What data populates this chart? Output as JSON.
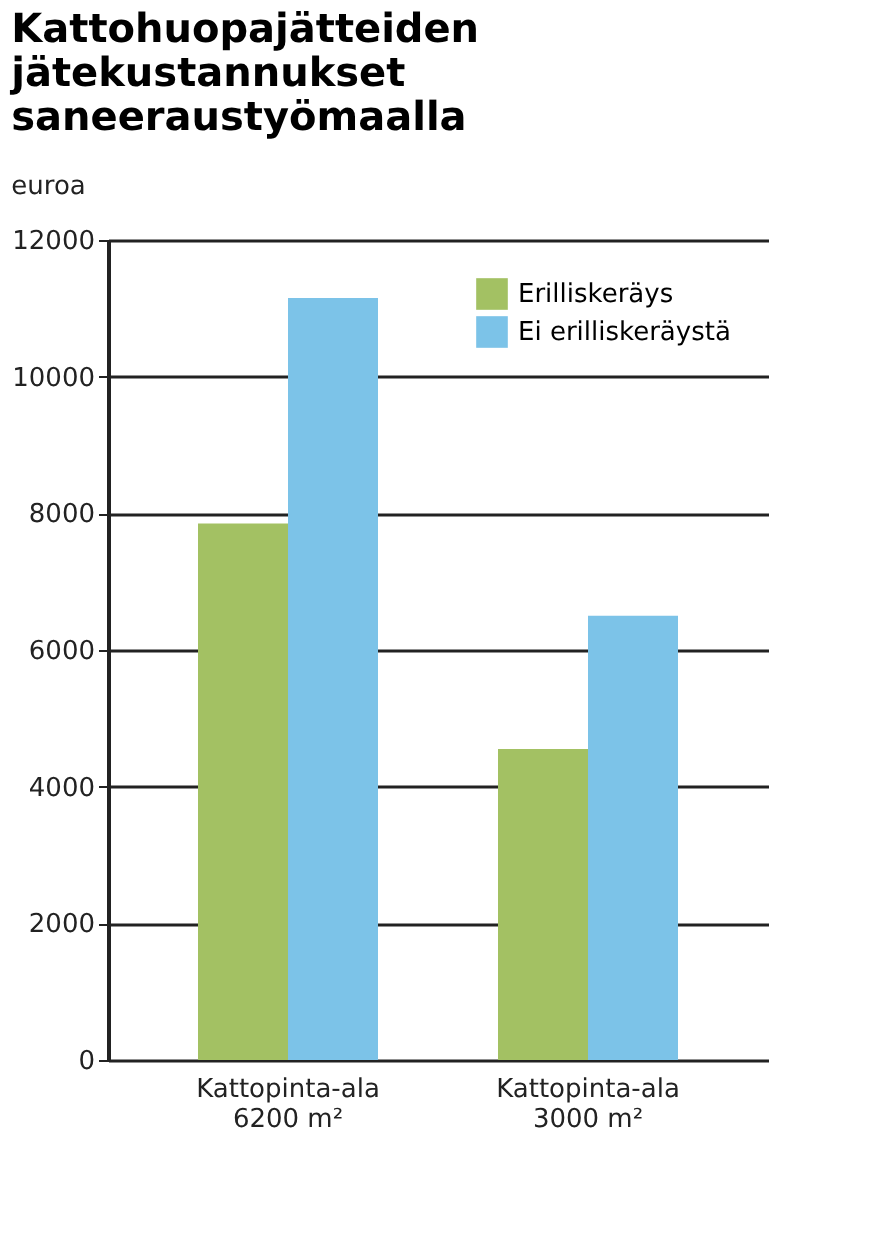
{
  "chart_data": {
    "type": "bar",
    "title": "Kattohuopajätteiden\njätekustannukset\nsaneeraustyömaalla",
    "ylabel": "euroa",
    "categories": [
      "Kattopinta-ala\n6200 m²",
      "Kattopinta-ala\n3000 m²"
    ],
    "series": [
      {
        "name": "Erilliskeräys",
        "color": "#a3c163",
        "values": [
          7850,
          4550
        ]
      },
      {
        "name": "Ei erilliskeräystä",
        "color": "#7cc3e8",
        "values": [
          11150,
          6500
        ]
      }
    ],
    "ylim": [
      0,
      12000
    ],
    "yticks": [
      0,
      2000,
      4000,
      6000,
      8000,
      10000,
      12000
    ],
    "grid": "y",
    "legend": "top right"
  }
}
